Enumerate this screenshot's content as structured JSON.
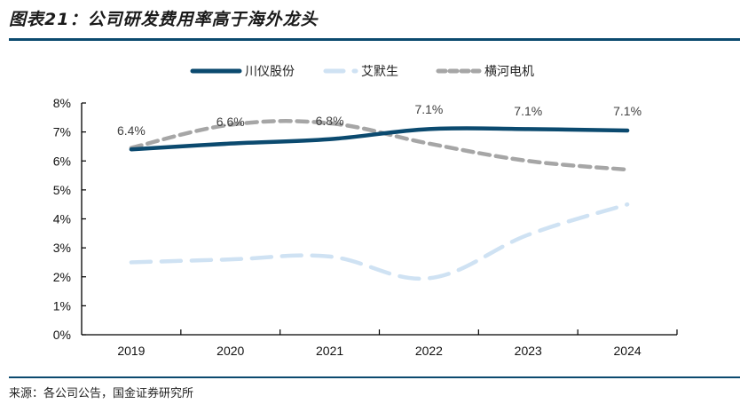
{
  "header": {
    "title": "图表21：公司研发费用率高于海外龙头"
  },
  "footer": {
    "source": "来源：各公司公告，国金证券研究所"
  },
  "chart_data": {
    "type": "line",
    "title": "图表21：公司研发费用率高于海外龙头",
    "xlabel": "",
    "ylabel": "",
    "categories": [
      "2019",
      "2020",
      "2021",
      "2022",
      "2023",
      "2024"
    ],
    "ylim": [
      0,
      8
    ],
    "yticks": [
      0,
      1,
      2,
      3,
      4,
      5,
      6,
      7,
      8
    ],
    "ytick_labels": [
      "0%",
      "1%",
      "2%",
      "3%",
      "4%",
      "5%",
      "6%",
      "7%",
      "8%"
    ],
    "grid": false,
    "legend_position": "top-center",
    "series": [
      {
        "name": "川仪股份",
        "values": [
          6.4,
          6.6,
          6.75,
          7.1,
          7.1,
          7.05
        ],
        "data_labels": [
          "6.4%",
          "6.6%",
          "6.8%",
          "7.1%",
          "7.1%",
          "7.1%"
        ],
        "color": "#0b4a6f",
        "style": "solid"
      },
      {
        "name": "艾默生",
        "values": [
          2.5,
          2.6,
          2.7,
          1.95,
          3.45,
          4.5
        ],
        "color": "#cfe2f3",
        "style": "long-dash"
      },
      {
        "name": "横河电机",
        "values": [
          6.45,
          7.25,
          7.3,
          6.6,
          6.0,
          5.7
        ],
        "color": "#a6a6a6",
        "style": "dash"
      }
    ]
  }
}
